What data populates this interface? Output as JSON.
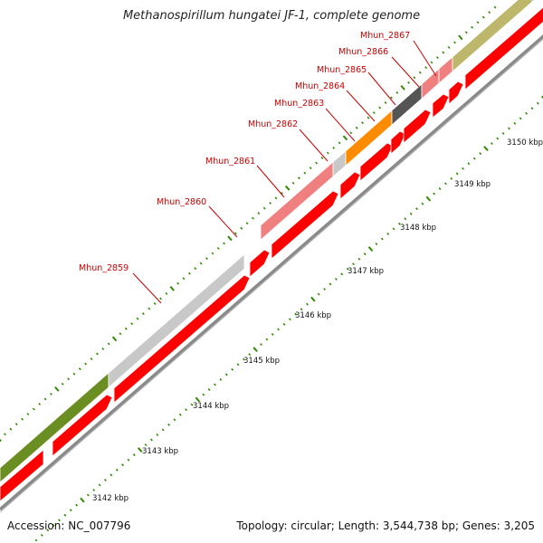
{
  "title": "Methanospirillum hungatei JF-1, complete genome",
  "footer": {
    "accession": "Accession: NC_007796",
    "summary": "Topology: circular; Length: 3,544,738 bp; Genes: 3,205"
  },
  "colors": {
    "cds_red": "#ff0000",
    "backbone": "#8a8a8a",
    "tick_green": "#2e8b00",
    "label_red": "#cc0000",
    "cog_light_gray": "#c8c8c8",
    "cog_olive_green": "#6b8e23",
    "cog_pink": "#f08080",
    "cog_orange": "#ff8c00",
    "cog_dark_gray": "#555555",
    "cog_khaki": "#bdb76b",
    "cog_blue": "#1fa8e6"
  },
  "kbp_labels": [
    "3142 kbp",
    "3143 kbp",
    "3144 kbp",
    "3145 kbp",
    "3146 kbp",
    "3147 kbp",
    "3148 kbp",
    "3149 kbp",
    "3150 kbp"
  ],
  "gene_labels": [
    "Mhun_2859",
    "Mhun_2860",
    "Mhun_2861",
    "Mhun_2862",
    "Mhun_2863",
    "Mhun_2864",
    "Mhun_2865",
    "Mhun_2866",
    "Mhun_2867"
  ]
}
